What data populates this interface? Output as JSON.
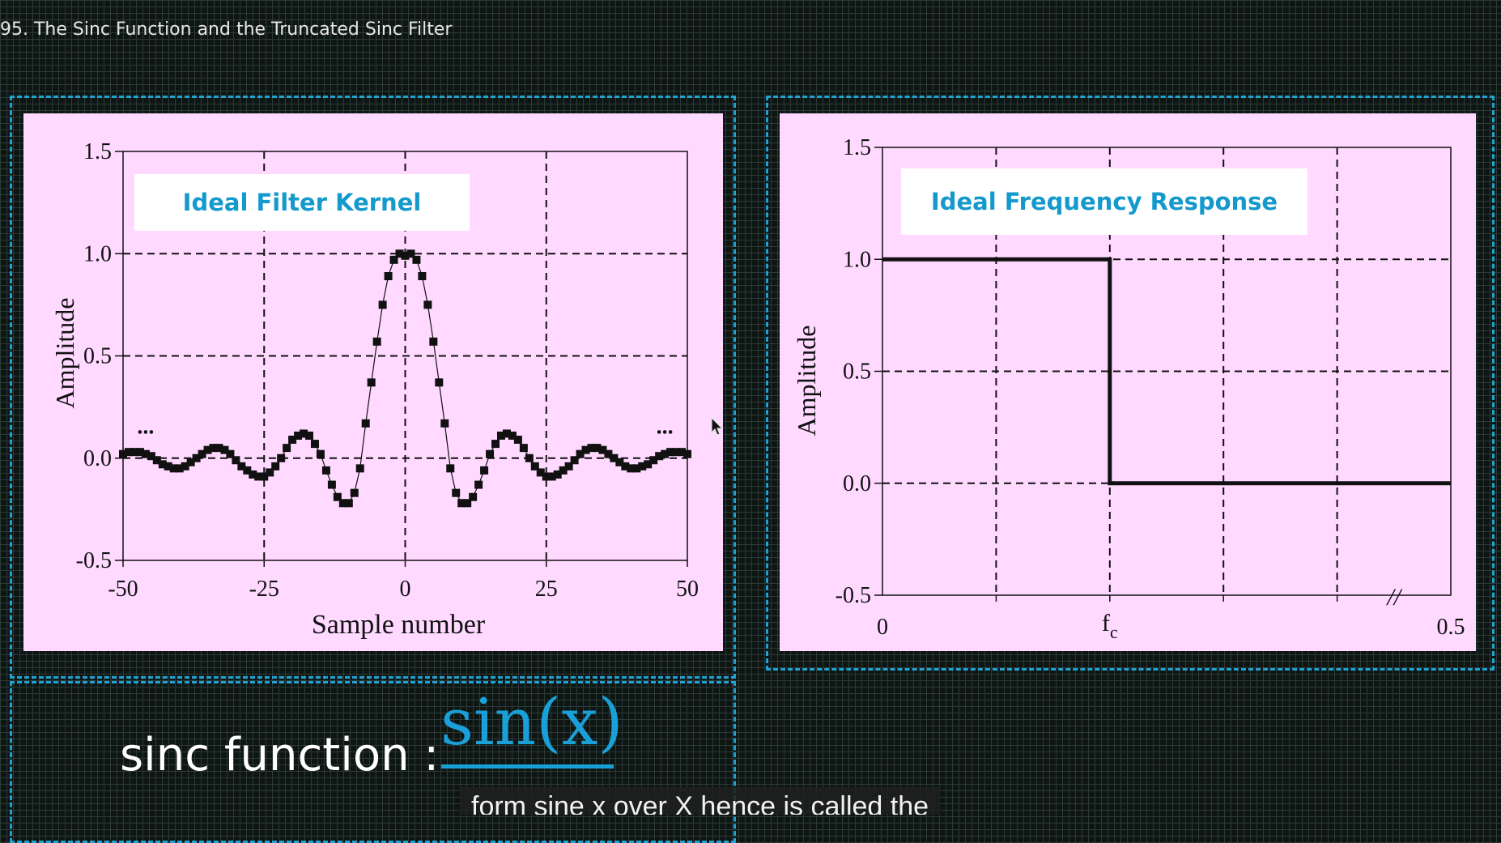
{
  "video": {
    "title": "95. The Sinc Function and the Truncated Sinc Filter"
  },
  "formula": {
    "label": "sinc function :",
    "numerator": "sin(x)"
  },
  "caption": {
    "text": "form sine x over X hence is called the"
  },
  "colors": {
    "accent": "#1fa3d4",
    "panel_bg": "#ffd9ff",
    "label_text": "#1499cc"
  },
  "chart_data": [
    {
      "type": "scatter",
      "title": "Ideal Filter Kernel",
      "xlabel": "Sample number",
      "ylabel": "Amplitude",
      "xlim": [
        -50,
        50
      ],
      "ylim": [
        -0.5,
        1.5
      ],
      "x_ticks": [
        "-50",
        "-25",
        "0",
        "25",
        "50"
      ],
      "y_ticks": [
        "1.5",
        "1.0",
        "0.5",
        "0.0",
        "-0.5"
      ],
      "grid": true,
      "continuation_marks": [
        "...",
        "..."
      ],
      "series": [
        {
          "x": [
            -50,
            -49,
            -48,
            -47,
            -46,
            -45,
            -44,
            -43,
            -42,
            -41,
            -40,
            -39,
            -38,
            -37,
            -36,
            -35,
            -34,
            -33,
            -32,
            -31,
            -30,
            -29,
            -28,
            -27,
            -26,
            -25,
            -24,
            -23,
            -22,
            -21,
            -20,
            -19,
            -18,
            -17,
            -16,
            -15,
            -14,
            -13,
            -12,
            -11,
            -10,
            -9,
            -8,
            -7,
            -6,
            -5,
            -4,
            -3,
            -2,
            -1,
            0,
            1,
            2,
            3,
            4,
            5,
            6,
            7,
            8,
            9,
            10,
            11,
            12,
            13,
            14,
            15,
            16,
            17,
            18,
            19,
            20,
            21,
            22,
            23,
            24,
            25,
            26,
            27,
            28,
            29,
            30,
            31,
            32,
            33,
            34,
            35,
            36,
            37,
            38,
            39,
            40,
            41,
            42,
            43,
            44,
            45,
            46,
            47,
            48,
            49,
            50
          ],
          "values": [
            0.02,
            0.03,
            0.03,
            0.03,
            0.02,
            0.01,
            -0.01,
            -0.03,
            -0.04,
            -0.05,
            -0.05,
            -0.04,
            -0.02,
            0.0,
            0.02,
            0.04,
            0.05,
            0.05,
            0.04,
            0.02,
            -0.01,
            -0.04,
            -0.06,
            -0.08,
            -0.09,
            -0.09,
            -0.07,
            -0.04,
            0.0,
            0.05,
            0.09,
            0.11,
            0.12,
            0.11,
            0.07,
            0.02,
            -0.06,
            -0.13,
            -0.19,
            -0.22,
            -0.22,
            -0.17,
            -0.05,
            0.17,
            0.37,
            0.57,
            0.75,
            0.89,
            0.97,
            1.0,
            0.99,
            1.0,
            0.97,
            0.89,
            0.75,
            0.57,
            0.37,
            0.17,
            -0.05,
            -0.17,
            -0.22,
            -0.22,
            -0.19,
            -0.13,
            -0.06,
            0.02,
            0.07,
            0.11,
            0.12,
            0.11,
            0.09,
            0.05,
            0.0,
            -0.04,
            -0.07,
            -0.09,
            -0.09,
            -0.08,
            -0.06,
            -0.04,
            -0.01,
            0.02,
            0.04,
            0.05,
            0.05,
            0.04,
            0.02,
            0.0,
            -0.02,
            -0.04,
            -0.05,
            -0.05,
            -0.04,
            -0.03,
            -0.01,
            0.01,
            0.02,
            0.03,
            0.03,
            0.03,
            0.02
          ]
        }
      ]
    },
    {
      "type": "line",
      "title": "Ideal Frequency Response",
      "xlabel": "",
      "ylabel": "Amplitude",
      "ylim": [
        -0.5,
        1.5
      ],
      "x_ticks": [
        "0",
        "fc",
        "0.5"
      ],
      "x_tick_main": "f",
      "x_tick_sub": "c",
      "y_ticks": [
        "1.5",
        "1.0",
        "0.5",
        "0.0",
        "-0.5"
      ],
      "grid": true,
      "axis_break": "//",
      "series": [
        {
          "x": [
            "0",
            "fc",
            "fc",
            "0.5"
          ],
          "values": [
            1.0,
            1.0,
            0.0,
            0.0
          ]
        }
      ]
    }
  ]
}
